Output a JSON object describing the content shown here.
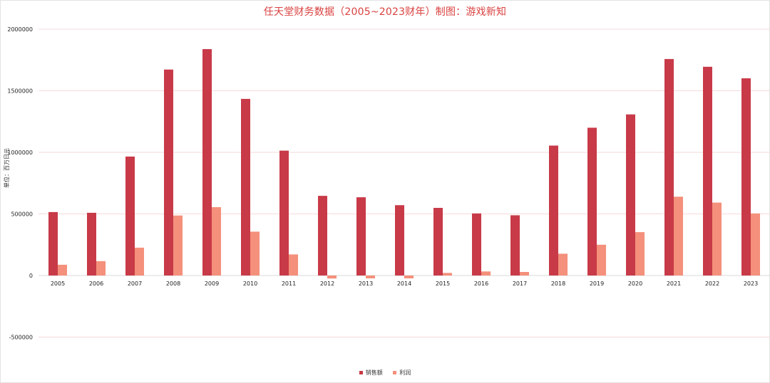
{
  "chart_data": {
    "type": "bar",
    "title": "任天堂财务数据（2005~2023财年）制图：游戏新知",
    "ylabel": "单位：百万日元",
    "ylim": [
      -500000,
      2000000
    ],
    "yticks": [
      2000000,
      1500000,
      1000000,
      500000,
      0,
      -500000
    ],
    "ytick_labels": [
      "2000000",
      "1500000",
      "1000000",
      "500000",
      "0",
      "-500000"
    ],
    "grid": true,
    "legend_position": "bottom-center",
    "categories": [
      "2005",
      "2006",
      "2007",
      "2008",
      "2009",
      "2010",
      "2011",
      "2012",
      "2013",
      "2014",
      "2015",
      "2016",
      "2017",
      "2018",
      "2019",
      "2020",
      "2021",
      "2022",
      "2023"
    ],
    "series": [
      {
        "name": "销售额",
        "color": "#c83a48",
        "values": [
          515000,
          509000,
          966000,
          1672000,
          1838000,
          1434000,
          1014000,
          647000,
          635000,
          571000,
          549000,
          504000,
          489000,
          1055000,
          1200000,
          1308000,
          1758000,
          1695000,
          1601000
        ]
      },
      {
        "name": "利润",
        "color": "#f4907b",
        "values": [
          87000,
          117000,
          226000,
          487000,
          555000,
          356000,
          171000,
          -24000,
          -23000,
          -23000,
          21000,
          33000,
          29000,
          177000,
          250000,
          352000,
          640000,
          592000,
          504000
        ]
      }
    ]
  }
}
